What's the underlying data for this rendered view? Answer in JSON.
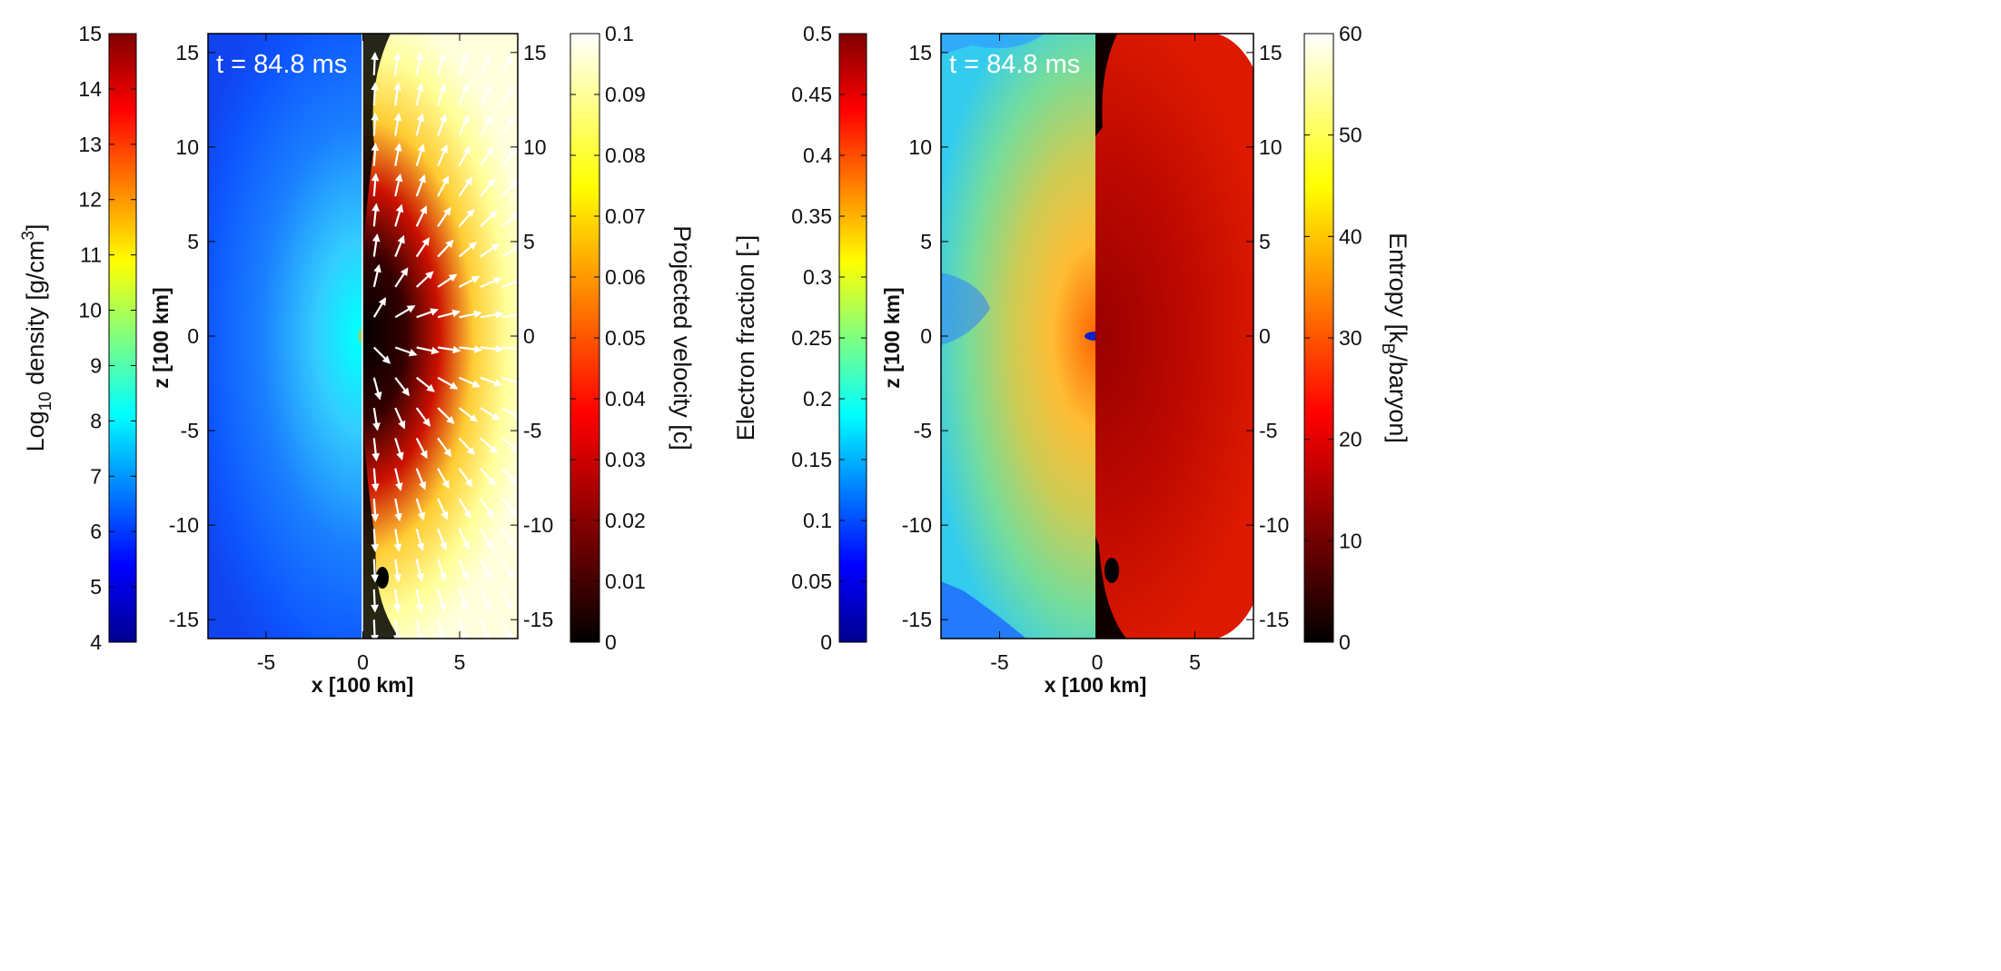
{
  "chart_data": [
    {
      "type": "heatmap",
      "panel": "left",
      "annotation": "t = 84.8 ms",
      "xlabel": "x [100 km]",
      "ylabel": "z [100 km]",
      "xlim": [
        -8,
        8
      ],
      "ylim": [
        -16,
        16
      ],
      "x_ticks": [
        -5,
        0,
        5
      ],
      "y_ticks": [
        -15,
        -10,
        -5,
        0,
        5,
        10,
        15
      ],
      "left_half": {
        "quantity": "Log10 density [g/cm3]",
        "colorbar": {
          "label": "Log10 density [g/cm3]",
          "label_main": "Log",
          "label_sub": "10",
          "label_rest": " density [g/cm",
          "label_sup": "3",
          "label_close": "]",
          "colormap": "jet",
          "range": [
            4,
            15
          ],
          "ticks": [
            "4",
            "5",
            "6",
            "7",
            "8",
            "9",
            "10",
            "11",
            "12",
            "13",
            "14",
            "15"
          ]
        }
      },
      "right_half": {
        "quantity": "Projected velocity [c]",
        "vector_overlay": "velocity arrows (white)",
        "colorbar": {
          "label": "Projected velocity [c]",
          "colormap": "hot",
          "range": [
            0,
            0.1
          ],
          "ticks": [
            "0",
            "0.01",
            "0.02",
            "0.03",
            "0.04",
            "0.05",
            "0.06",
            "0.07",
            "0.08",
            "0.09",
            "0.1"
          ]
        }
      }
    },
    {
      "type": "heatmap",
      "panel": "right",
      "annotation": "t = 84.8 ms",
      "xlabel": "x [100 km]",
      "ylabel": "z [100 km]",
      "xlim": [
        -8,
        8
      ],
      "ylim": [
        -16,
        16
      ],
      "x_ticks": [
        -5,
        0,
        5
      ],
      "y_ticks": [
        -15,
        -10,
        -5,
        0,
        5,
        10,
        15
      ],
      "left_half": {
        "quantity": "Electron fraction [-]",
        "colorbar": {
          "label": "Electron fraction [-]",
          "colormap": "jet",
          "range": [
            0,
            0.5
          ],
          "ticks": [
            "0",
            "0.05",
            "0.1",
            "0.15",
            "0.2",
            "0.25",
            "0.3",
            "0.35",
            "0.4",
            "0.45",
            "0.5"
          ]
        }
      },
      "right_half": {
        "quantity": "Entropy [kB/baryon]",
        "colorbar": {
          "label": "Entropy [kB/baryon]",
          "label_main": "Entropy [k",
          "label_sub": "B",
          "label_rest": "/baryon]",
          "colormap": "hot",
          "range": [
            0,
            60
          ],
          "ticks": [
            "0",
            "10",
            "20",
            "30",
            "40",
            "50",
            "60"
          ]
        }
      }
    }
  ],
  "colors": {
    "density_mid": "#3a8dff",
    "velocity_hot": "#ffff5a",
    "electron_fraction_mid": "#7fe0a0",
    "entropy_hot": "#cc1100",
    "text": "#111111",
    "annotation": "#ffffff"
  }
}
